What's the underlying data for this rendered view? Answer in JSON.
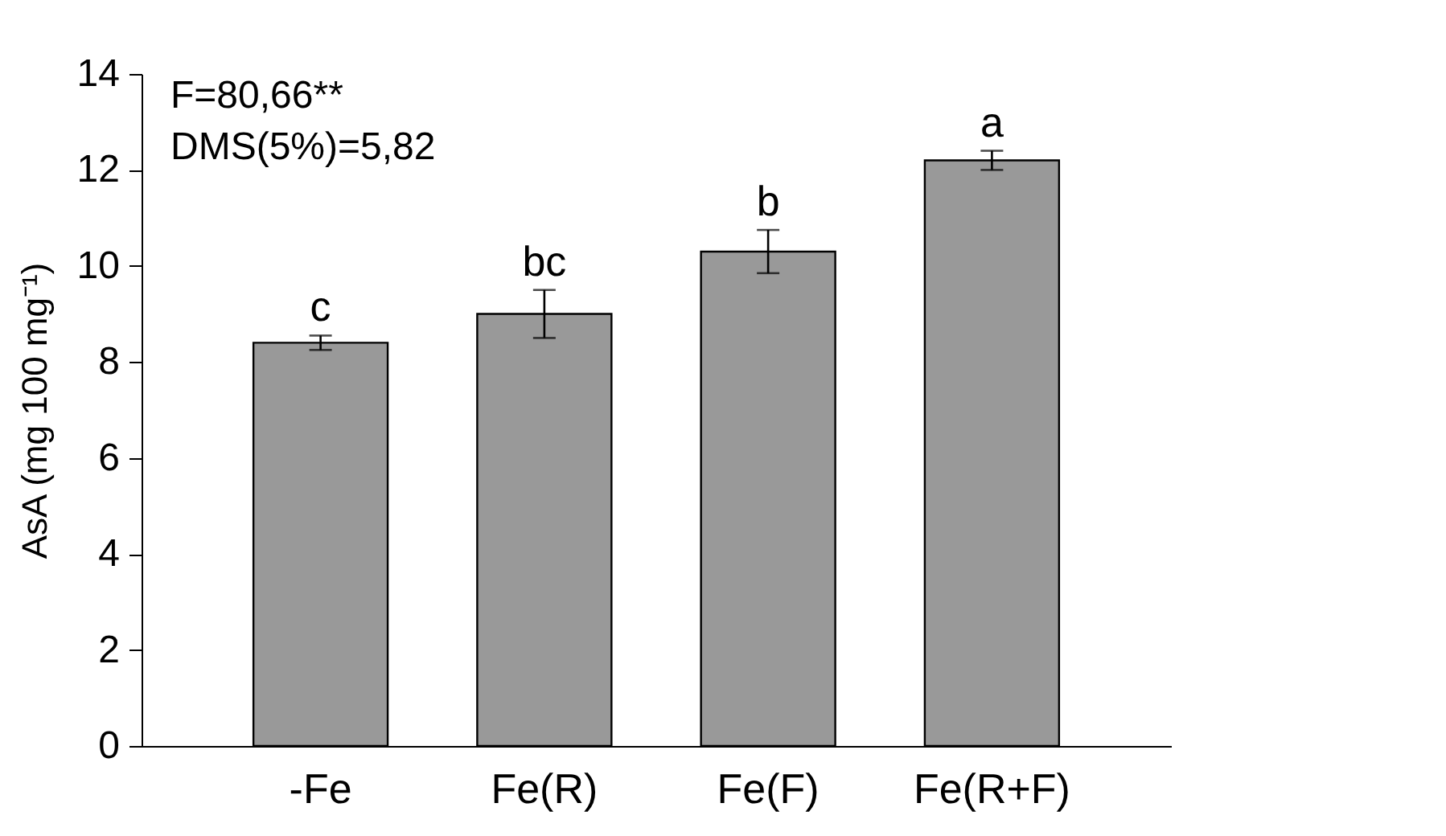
{
  "chart_data": {
    "type": "bar",
    "ylabel": "AsA (mg 100 mg⁻¹)",
    "categories": [
      "-Fe",
      "Fe(R)",
      "Fe(F)",
      "Fe(R+F)"
    ],
    "values": [
      8.4,
      9.0,
      10.3,
      12.2
    ],
    "errors": [
      0.15,
      0.5,
      0.45,
      0.2
    ],
    "color": "#999999",
    "ylim": [
      0,
      14
    ],
    "yticks": [
      0,
      2,
      4,
      6,
      8,
      10,
      12,
      14
    ],
    "grid": false,
    "annotations": [
      "F=80,66**",
      "DMS(5%)=5,82",
      {
        "text": "c",
        "x": "-Fe",
        "y": 8.55
      },
      {
        "text": "bc",
        "x": "Fe(R)",
        "y": 9.5
      },
      {
        "text": "b",
        "x": "Fe(F)",
        "y": 10.75
      },
      {
        "text": "a",
        "x": "Fe(R+F)",
        "y": 12.4
      }
    ]
  }
}
